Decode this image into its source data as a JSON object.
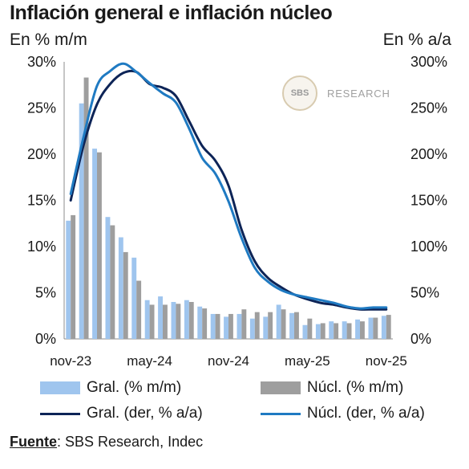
{
  "title": "Inflación general e inflación núcleo",
  "unit_left": "En % m/m",
  "unit_right": "En % a/a",
  "watermark": {
    "badge": "SBS",
    "text": "RESEARCH"
  },
  "source": {
    "label": "Fuente",
    "text": ": SBS Research, Indec"
  },
  "colors": {
    "gral_bar": "#9fc5ee",
    "nucl_bar": "#9e9e9e",
    "gral_line": "#0d2457",
    "nucl_line": "#1f7ac2"
  },
  "chart_data": {
    "type": "bar",
    "title": "Inflación general e inflación núcleo",
    "x": [
      "nov-23",
      "dic-23",
      "ene-24",
      "feb-24",
      "mar-24",
      "abr-24",
      "may-24",
      "jun-24",
      "jul-24",
      "ago-24",
      "sep-24",
      "oct-24",
      "nov-24",
      "dic-24",
      "ene-25",
      "feb-25",
      "mar-25",
      "abr-25",
      "may-25",
      "jun-25",
      "jul-25",
      "ago-25",
      "sep-25",
      "oct-25",
      "nov-25"
    ],
    "xtick_labels": [
      "nov-23",
      "may-24",
      "nov-24",
      "may-25",
      "nov-25"
    ],
    "y_left": {
      "label": "En % m/m",
      "lim": [
        0,
        30
      ],
      "ticks": [
        "0%",
        "5%",
        "10%",
        "15%",
        "20%",
        "25%",
        "30%"
      ]
    },
    "y_right": {
      "label": "En % a/a",
      "lim": [
        0,
        300
      ],
      "ticks": [
        "0%",
        "50%",
        "100%",
        "150%",
        "200%",
        "250%",
        "300%"
      ]
    },
    "series": [
      {
        "name": "Gral. (% m/m)",
        "type": "bar",
        "axis": "left",
        "values": [
          12.8,
          25.5,
          20.6,
          13.2,
          11.0,
          8.8,
          4.2,
          4.6,
          4.0,
          4.2,
          3.5,
          2.7,
          2.4,
          2.7,
          2.2,
          2.4,
          3.7,
          2.8,
          1.5,
          1.6,
          1.9,
          1.9,
          2.1,
          2.3,
          2.5
        ]
      },
      {
        "name": "Núcl. (% m/m)",
        "type": "bar",
        "axis": "left",
        "values": [
          13.4,
          28.3,
          20.2,
          12.3,
          9.4,
          6.3,
          3.7,
          3.7,
          3.8,
          4.0,
          3.3,
          2.7,
          2.7,
          3.2,
          2.9,
          2.9,
          3.2,
          2.9,
          2.2,
          1.7,
          1.7,
          1.7,
          1.9,
          2.3,
          2.6
        ]
      },
      {
        "name": "Gral. (der, % a/a)",
        "type": "line",
        "axis": "right",
        "values": [
          150,
          211,
          254,
          276,
          288,
          289,
          276,
          272,
          263,
          236,
          209,
          193,
          166,
          118,
          84,
          66,
          56,
          48,
          43,
          39,
          37,
          34,
          32,
          32,
          32
        ]
      },
      {
        "name": "Núcl. (der, % a/a)",
        "type": "line",
        "axis": "right",
        "values": [
          157,
          220,
          274,
          290,
          298,
          289,
          277,
          266,
          256,
          228,
          196,
          179,
          149,
          109,
          77,
          62,
          53,
          48,
          45,
          42,
          39,
          35,
          33,
          34,
          34
        ]
      }
    ],
    "legend": "bottom",
    "grid": false
  }
}
